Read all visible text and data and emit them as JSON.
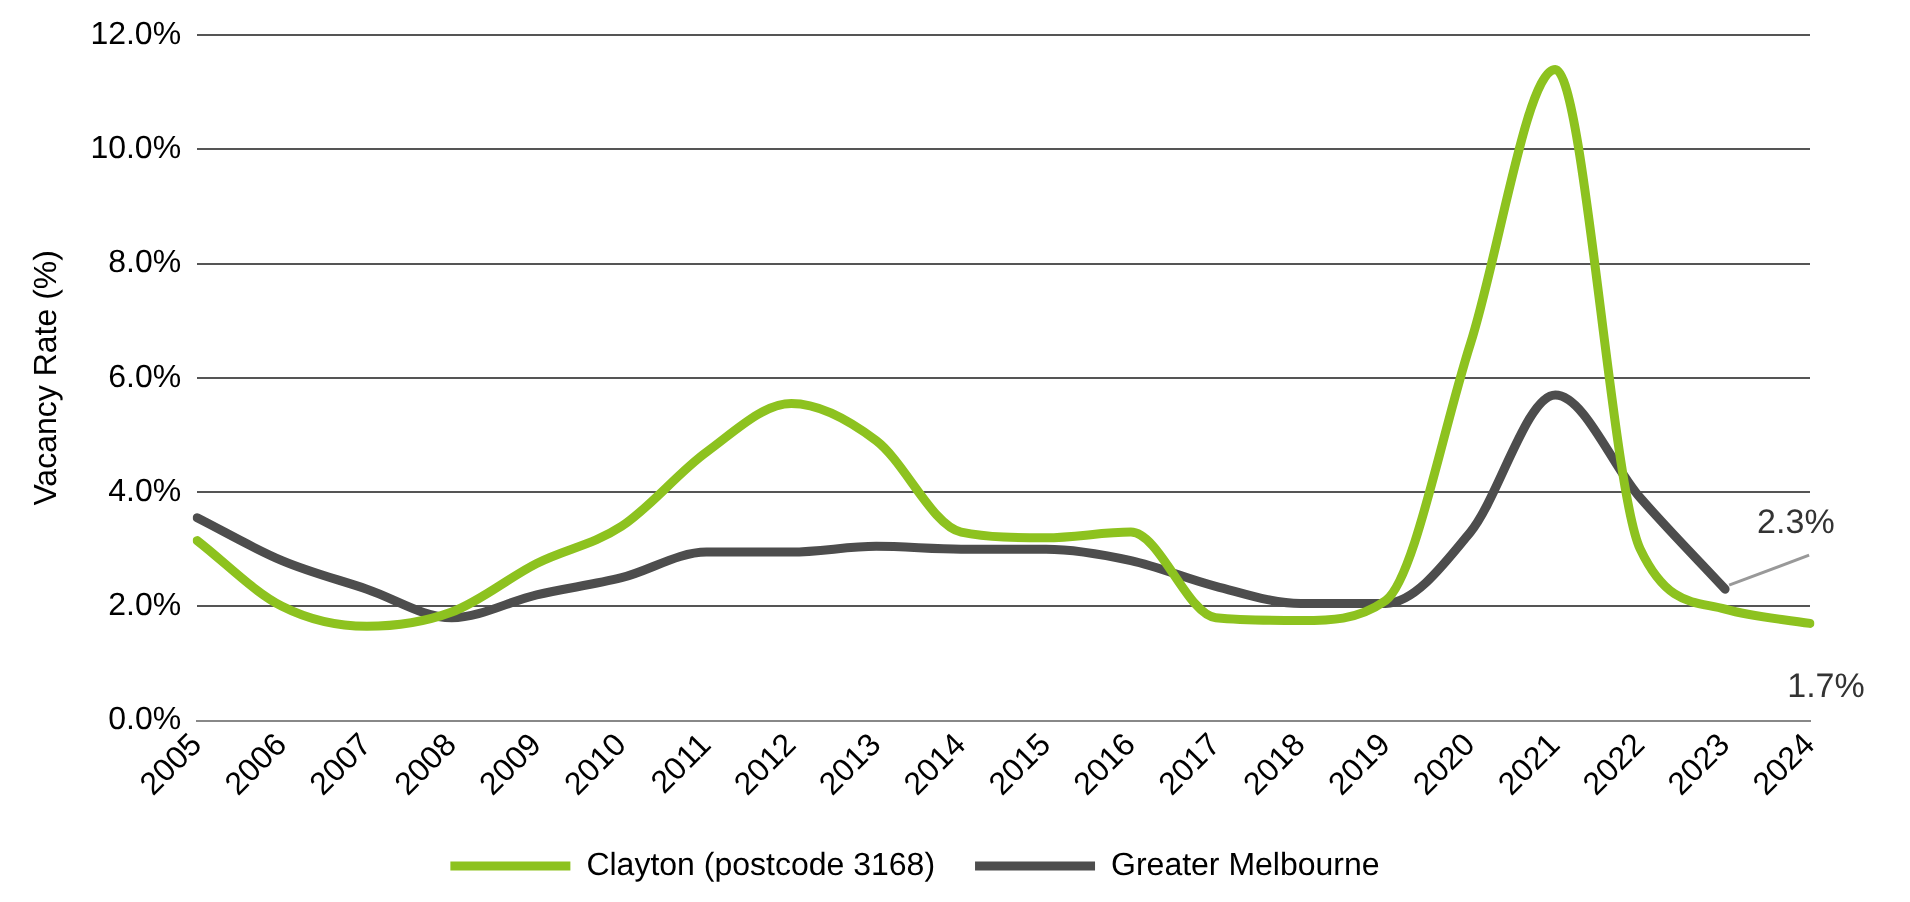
{
  "chart_data": {
    "type": "line",
    "ylabel": "Vacancy Rate (%)",
    "categories": [
      "2005",
      "2006",
      "2007",
      "2008",
      "2009",
      "2010",
      "2011",
      "2012",
      "2013",
      "2014",
      "2015",
      "2016",
      "2017",
      "2018",
      "2019",
      "2020",
      "2021",
      "2022",
      "2023",
      "2024"
    ],
    "series": [
      {
        "name": "Clayton (postcode 3168)",
        "color": "#8dc21f",
        "values": [
          3.15,
          2.0,
          1.65,
          1.9,
          2.75,
          3.4,
          4.7,
          5.55,
          4.9,
          3.3,
          3.2,
          3.3,
          1.8,
          1.75,
          2.1,
          6.6,
          11.4,
          3.0,
          1.95,
          1.7
        ]
      },
      {
        "name": "Greater Melbourne",
        "color": "#4d4d4d",
        "values": [
          3.55,
          2.8,
          2.3,
          1.8,
          2.2,
          2.5,
          2.95,
          2.95,
          3.05,
          3.0,
          3.0,
          2.8,
          2.35,
          2.05,
          2.05,
          3.3,
          5.7,
          3.9,
          2.3,
          null
        ]
      }
    ],
    "ylim": [
      0,
      12
    ],
    "yticks": [
      {
        "value": 0,
        "label": "0.0%"
      },
      {
        "value": 2,
        "label": "2.0%"
      },
      {
        "value": 4,
        "label": "4.0%"
      },
      {
        "value": 6,
        "label": "6.0%"
      },
      {
        "value": 8,
        "label": "8.0%"
      },
      {
        "value": 10,
        "label": "10.0%"
      },
      {
        "value": 12,
        "label": "12.0%"
      }
    ],
    "grid": "y",
    "legend": "bottom",
    "annotations": [
      {
        "text": "2.3%",
        "x": "2023",
        "y": 2.3
      },
      {
        "text": "1.7%",
        "x": "2024",
        "y": 1.7
      }
    ]
  }
}
